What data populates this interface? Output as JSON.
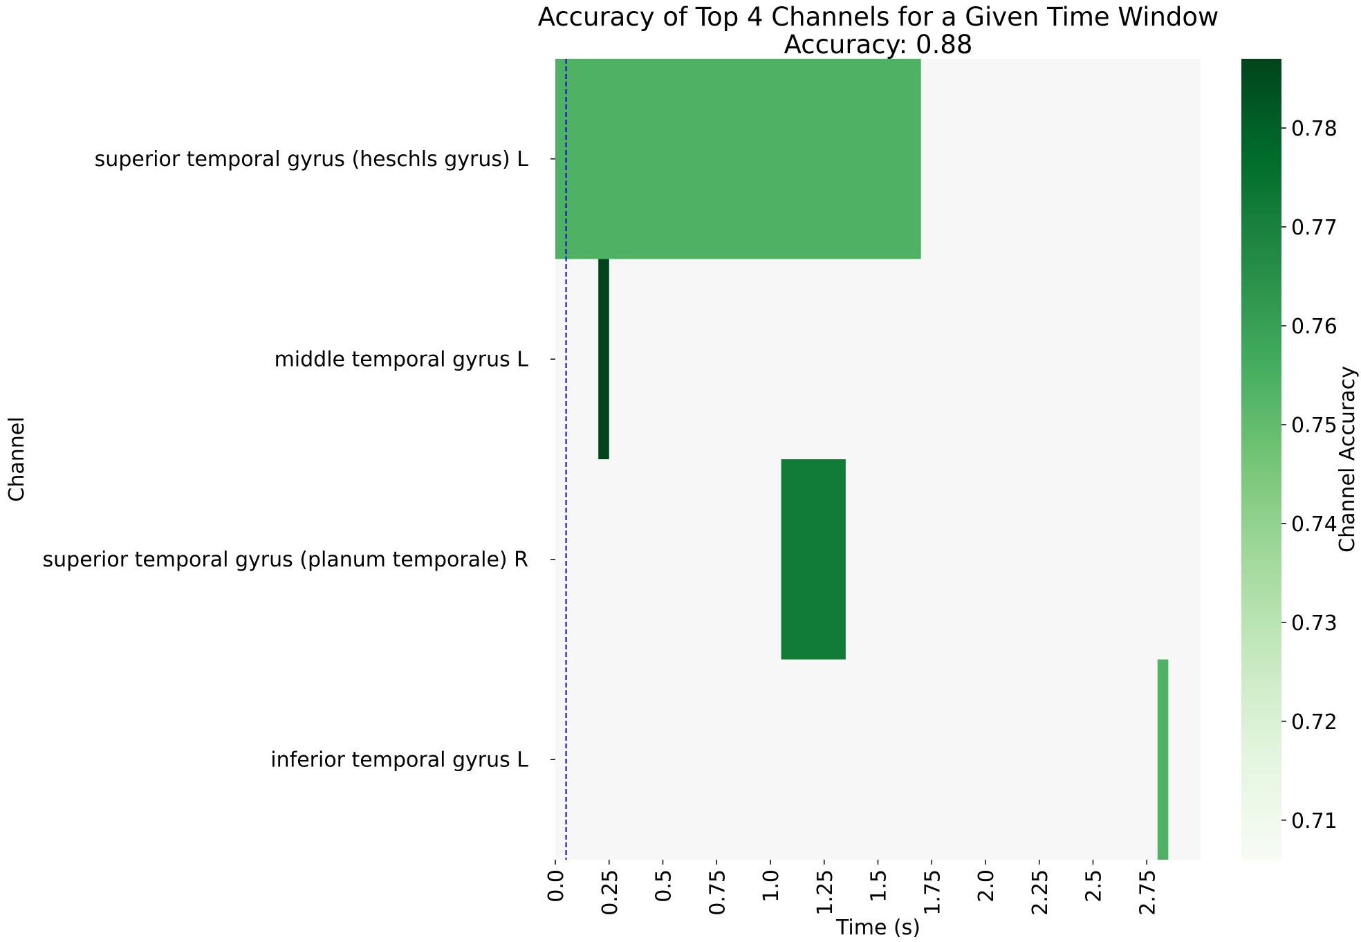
{
  "chart_data": {
    "type": "heatmap",
    "title": "Accuracy of Top 4 Channels for a Given Time Window",
    "subtitle": "Accuracy: 0.88",
    "xlabel": "Time (s)",
    "ylabel": "Channel",
    "colorbar_label": "Channel Accuracy",
    "xlim": [
      0,
      3.0
    ],
    "x_ticks": [
      0.0,
      0.25,
      0.5,
      0.75,
      1.0,
      1.25,
      1.5,
      1.75,
      2.0,
      2.25,
      2.5,
      2.75
    ],
    "x_tick_labels": [
      "0.0",
      "0.25",
      "0.5",
      "0.75",
      "1.0",
      "1.25",
      "1.5",
      "1.75",
      "2.0",
      "2.25",
      "2.5",
      "2.75"
    ],
    "channels": [
      "superior temporal gyrus (heschls gyrus) L",
      "middle temporal gyrus L",
      "superior temporal gyrus (planum temporale) R",
      "inferior temporal gyrus L"
    ],
    "background_color": "#f7f7f7",
    "cells": [
      {
        "channel": 0,
        "t_start": 0.0,
        "t_end": 1.7,
        "accuracy": 0.754
      },
      {
        "channel": 1,
        "t_start": 0.2,
        "t_end": 0.25,
        "accuracy": 0.787
      },
      {
        "channel": 2,
        "t_start": 1.05,
        "t_end": 1.35,
        "accuracy": 0.772
      },
      {
        "channel": 3,
        "t_start": 2.8,
        "t_end": 2.85,
        "accuracy": 0.754
      }
    ],
    "vline": {
      "x": 0.05,
      "color": "#0000cc",
      "style": "dashed"
    },
    "colorbar": {
      "min": 0.706,
      "max": 0.787,
      "ticks": [
        0.71,
        0.72,
        0.73,
        0.74,
        0.75,
        0.76,
        0.77,
        0.78
      ],
      "tick_labels": [
        "0.71",
        "0.72",
        "0.73",
        "0.74",
        "0.75",
        "0.76",
        "0.77",
        "0.78"
      ],
      "colormap": "Greens"
    }
  }
}
